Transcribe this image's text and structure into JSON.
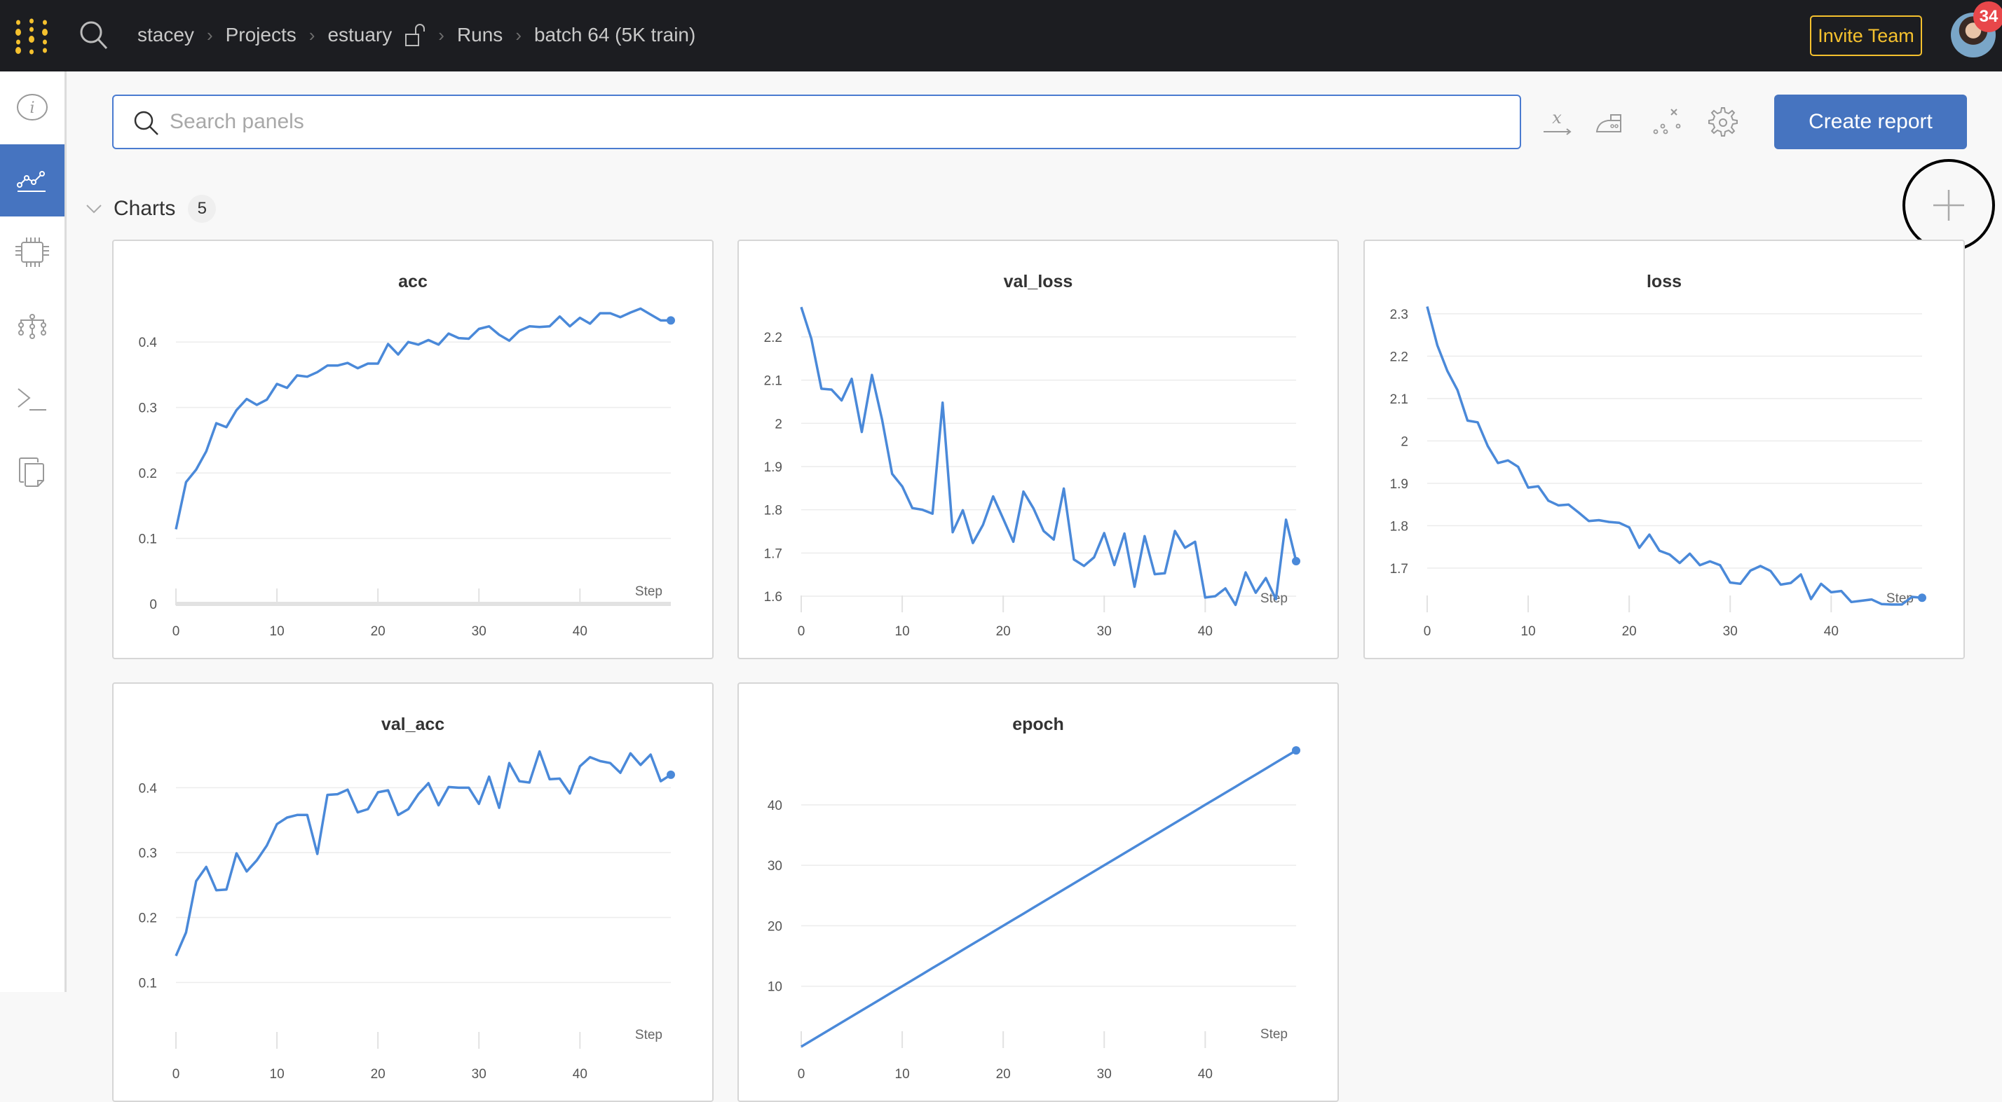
{
  "topbar": {
    "breadcrumb": [
      "stacey",
      "Projects",
      "estuary",
      "Runs",
      "batch 64 (5K train)"
    ],
    "invite_label": "Invite Team",
    "notification_count": "34",
    "brand_color": "#f5c12e"
  },
  "sidebar": {
    "items": [
      {
        "icon": "info-icon",
        "active": false
      },
      {
        "icon": "charts-icon",
        "active": true
      },
      {
        "icon": "system-chip-icon",
        "active": false
      },
      {
        "icon": "model-graph-icon",
        "active": false
      },
      {
        "icon": "terminal-logs-icon",
        "active": false
      },
      {
        "icon": "files-icon",
        "active": false
      }
    ],
    "active_color": "#4674c0"
  },
  "toolbar": {
    "search_placeholder": "Search panels",
    "search_value": "",
    "icons": [
      "x-axis-icon",
      "smoothing-iron-icon",
      "outliers-icon",
      "settings-gear-icon"
    ],
    "create_report_label": "Create report"
  },
  "section": {
    "title": "Charts",
    "count": "5",
    "add_panel_icon": "plus-icon"
  },
  "chart_data": [
    {
      "type": "line",
      "title": "acc",
      "xlabel": "Step",
      "line_color": "#4a89d9",
      "xticks": [
        0,
        10,
        20,
        30,
        40
      ],
      "yticks": [
        0,
        0.1,
        0.2,
        0.3,
        0.4
      ],
      "ylim": [
        0,
        0.458
      ],
      "xlim": [
        0,
        49
      ],
      "x": [
        0,
        1,
        2,
        3,
        4,
        5,
        6,
        7,
        8,
        9,
        10,
        11,
        12,
        13,
        14,
        15,
        16,
        17,
        18,
        19,
        20,
        21,
        22,
        23,
        24,
        25,
        26,
        27,
        28,
        29,
        30,
        31,
        32,
        33,
        34,
        35,
        36,
        37,
        38,
        39,
        40,
        41,
        42,
        43,
        44,
        45,
        46,
        47,
        48,
        49
      ],
      "y": [
        0.114,
        0.186,
        0.205,
        0.233,
        0.276,
        0.27,
        0.296,
        0.313,
        0.304,
        0.312,
        0.336,
        0.33,
        0.349,
        0.347,
        0.354,
        0.364,
        0.364,
        0.368,
        0.36,
        0.367,
        0.367,
        0.397,
        0.381,
        0.4,
        0.396,
        0.403,
        0.396,
        0.413,
        0.406,
        0.405,
        0.42,
        0.424,
        0.411,
        0.402,
        0.417,
        0.424,
        0.423,
        0.424,
        0.439,
        0.424,
        0.437,
        0.428,
        0.444,
        0.444,
        0.438,
        0.445,
        0.451,
        0.442,
        0.433,
        0.433
      ]
    },
    {
      "type": "line",
      "title": "val_loss",
      "xlabel": "Step",
      "line_color": "#4a89d9",
      "xticks": [
        0,
        10,
        20,
        30,
        40
      ],
      "yticks": [
        1.6,
        1.7,
        1.8,
        1.9,
        2,
        2.1,
        2.2
      ],
      "ylim": [
        1.566,
        2.276
      ],
      "xlim": [
        0,
        49
      ],
      "x": [
        0,
        1,
        2,
        3,
        4,
        5,
        6,
        7,
        8,
        9,
        10,
        11,
        12,
        13,
        14,
        15,
        16,
        17,
        18,
        19,
        20,
        21,
        22,
        23,
        24,
        25,
        26,
        27,
        28,
        29,
        30,
        31,
        32,
        33,
        34,
        35,
        36,
        37,
        38,
        39,
        40,
        41,
        42,
        43,
        44,
        45,
        46,
        47,
        48,
        49
      ],
      "y": [
        2.269,
        2.196,
        2.08,
        2.078,
        2.053,
        2.103,
        1.98,
        2.112,
        2.009,
        1.883,
        1.854,
        1.804,
        1.8,
        1.791,
        2.048,
        1.748,
        1.799,
        1.723,
        1.765,
        1.831,
        1.779,
        1.726,
        1.842,
        1.803,
        1.751,
        1.731,
        1.849,
        1.685,
        1.67,
        1.69,
        1.746,
        1.672,
        1.745,
        1.622,
        1.739,
        1.651,
        1.653,
        1.751,
        1.712,
        1.726,
        1.597,
        1.6,
        1.618,
        1.58,
        1.655,
        1.608,
        1.642,
        1.593,
        1.777,
        1.681
      ]
    },
    {
      "type": "line",
      "title": "loss",
      "xlabel": "Step",
      "line_color": "#4a89d9",
      "xticks": [
        0,
        10,
        20,
        30,
        40
      ],
      "yticks": [
        1.7,
        1.8,
        1.9,
        2,
        2.1,
        2.2,
        2.3
      ],
      "ylim": [
        1.599,
        2.323
      ],
      "xlim": [
        0,
        49
      ],
      "x": [
        0,
        1,
        2,
        3,
        4,
        5,
        6,
        7,
        8,
        9,
        10,
        11,
        12,
        13,
        14,
        15,
        16,
        17,
        18,
        19,
        20,
        21,
        22,
        23,
        24,
        25,
        26,
        27,
        28,
        29,
        30,
        31,
        32,
        33,
        34,
        35,
        36,
        37,
        38,
        39,
        40,
        41,
        42,
        43,
        44,
        45,
        46,
        47,
        48,
        49
      ],
      "y": [
        2.317,
        2.226,
        2.165,
        2.12,
        2.048,
        2.044,
        1.988,
        1.948,
        1.954,
        1.939,
        1.89,
        1.893,
        1.859,
        1.848,
        1.85,
        1.831,
        1.811,
        1.813,
        1.809,
        1.807,
        1.796,
        1.748,
        1.779,
        1.741,
        1.732,
        1.712,
        1.734,
        1.707,
        1.716,
        1.707,
        1.666,
        1.663,
        1.694,
        1.705,
        1.693,
        1.661,
        1.665,
        1.685,
        1.627,
        1.663,
        1.643,
        1.646,
        1.62,
        1.623,
        1.626,
        1.615,
        1.614,
        1.614,
        1.632,
        1.63
      ]
    },
    {
      "type": "line",
      "title": "val_acc",
      "xlabel": "Step",
      "line_color": "#4a89d9",
      "xticks": [
        0,
        10,
        20,
        30,
        40
      ],
      "yticks": [
        0.1,
        0.2,
        0.3,
        0.4
      ],
      "ylim": [
        0,
        0.463
      ],
      "xlim": [
        0,
        49
      ],
      "x": [
        0,
        1,
        2,
        3,
        4,
        5,
        6,
        7,
        8,
        9,
        10,
        11,
        12,
        13,
        14,
        15,
        16,
        17,
        18,
        19,
        20,
        21,
        22,
        23,
        24,
        25,
        26,
        27,
        28,
        29,
        30,
        31,
        32,
        33,
        34,
        35,
        36,
        37,
        38,
        39,
        40,
        41,
        42,
        43,
        44,
        45,
        46,
        47,
        48,
        49
      ],
      "y": [
        0.141,
        0.177,
        0.256,
        0.278,
        0.242,
        0.243,
        0.299,
        0.271,
        0.288,
        0.311,
        0.344,
        0.354,
        0.358,
        0.358,
        0.298,
        0.389,
        0.39,
        0.397,
        0.362,
        0.367,
        0.393,
        0.396,
        0.358,
        0.367,
        0.39,
        0.407,
        0.373,
        0.401,
        0.4,
        0.4,
        0.375,
        0.417,
        0.369,
        0.438,
        0.41,
        0.408,
        0.456,
        0.413,
        0.414,
        0.391,
        0.433,
        0.447,
        0.441,
        0.438,
        0.423,
        0.453,
        0.435,
        0.451,
        0.41,
        0.42
      ]
    },
    {
      "type": "line",
      "title": "epoch",
      "xlabel": "Step",
      "line_color": "#4a89d9",
      "xticks": [
        0,
        10,
        20,
        30,
        40
      ],
      "yticks": [
        10,
        20,
        30,
        40
      ],
      "ylim": [
        0,
        49.6
      ],
      "xlim": [
        0,
        49
      ],
      "x": [
        0,
        1,
        2,
        3,
        4,
        5,
        6,
        7,
        8,
        9,
        10,
        11,
        12,
        13,
        14,
        15,
        16,
        17,
        18,
        19,
        20,
        21,
        22,
        23,
        24,
        25,
        26,
        27,
        28,
        29,
        30,
        31,
        32,
        33,
        34,
        35,
        36,
        37,
        38,
        39,
        40,
        41,
        42,
        43,
        44,
        45,
        46,
        47,
        48,
        49
      ],
      "y": [
        0,
        1,
        2,
        3,
        4,
        5,
        6,
        7,
        8,
        9,
        10,
        11,
        12,
        13,
        14,
        15,
        16,
        17,
        18,
        19,
        20,
        21,
        22,
        23,
        24,
        25,
        26,
        27,
        28,
        29,
        30,
        31,
        32,
        33,
        34,
        35,
        36,
        37,
        38,
        39,
        40,
        41,
        42,
        43,
        44,
        45,
        46,
        47,
        48,
        49
      ]
    }
  ]
}
